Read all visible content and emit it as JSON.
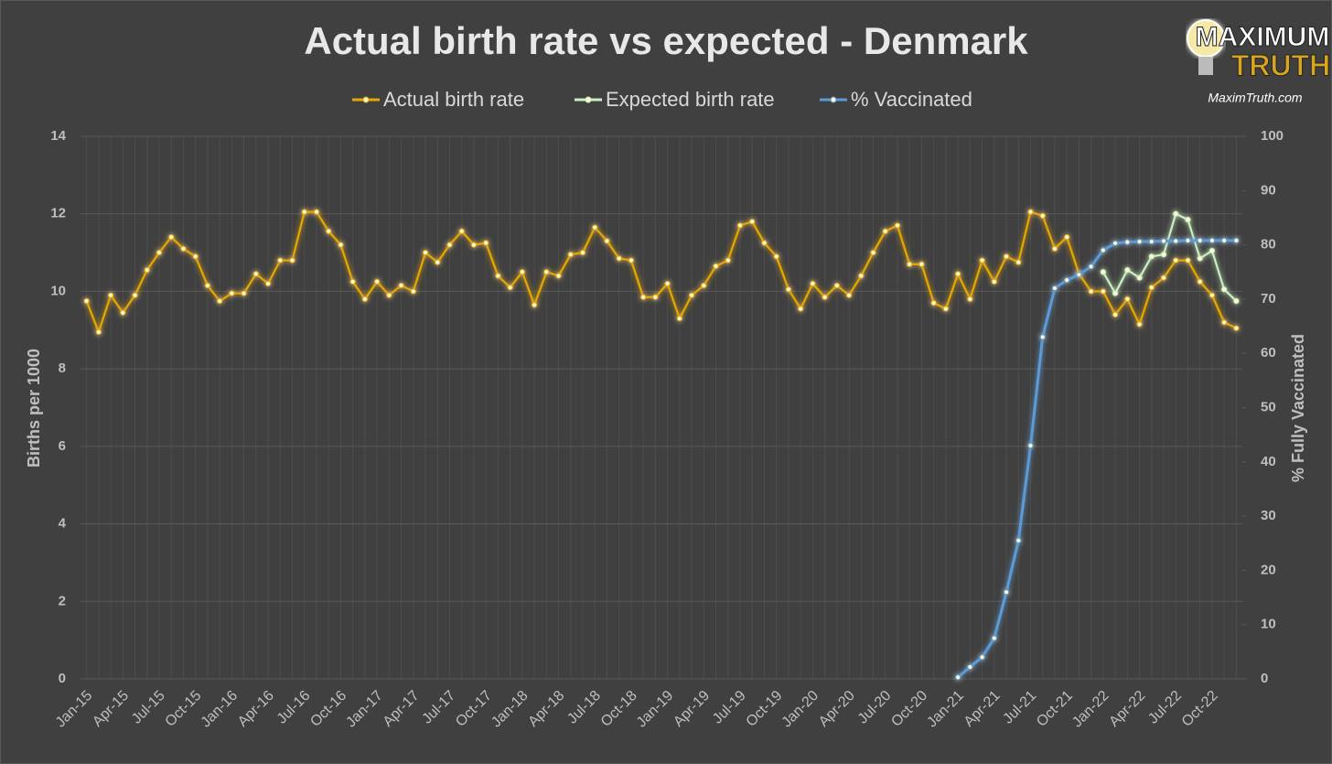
{
  "chart_data": {
    "type": "line",
    "title": "Actual birth rate vs expected - Denmark",
    "y_label": "Births per 1000",
    "y2_label": "% Fully Vaccinated",
    "categories": [
      "Jan-15",
      null,
      null,
      "Apr-15",
      null,
      null,
      "Jul-15",
      null,
      null,
      "Oct-15",
      null,
      null,
      "Jan-16",
      null,
      null,
      "Apr-16",
      null,
      null,
      "Jul-16",
      null,
      null,
      "Oct-16",
      null,
      null,
      "Jan-17",
      null,
      null,
      "Apr-17",
      null,
      null,
      "Jul-17",
      null,
      null,
      "Oct-17",
      null,
      null,
      "Jan-18",
      null,
      null,
      "Apr-18",
      null,
      null,
      "Jul-18",
      null,
      null,
      "Oct-18",
      null,
      null,
      "Jan-19",
      null,
      null,
      "Apr-19",
      null,
      null,
      "Jul-19",
      null,
      null,
      "Oct-19",
      null,
      null,
      "Jan-20",
      null,
      null,
      "Apr-20",
      null,
      null,
      "Jul-20",
      null,
      null,
      "Oct-20",
      null,
      null,
      "Jan-21",
      null,
      null,
      "Apr-21",
      null,
      null,
      "Jul-21",
      null,
      null,
      "Oct-21",
      null,
      null,
      "Jan-22",
      null,
      null,
      "Apr-22",
      null,
      null,
      "Jul-22",
      null,
      null,
      "Oct-22",
      null,
      null
    ],
    "series": [
      {
        "name": "Actual birth rate",
        "color": "#e6a800",
        "values": [
          9.75,
          8.95,
          9.9,
          9.45,
          9.9,
          10.55,
          11.0,
          11.4,
          11.1,
          10.9,
          10.15,
          9.75,
          9.95,
          9.95,
          10.45,
          10.2,
          10.8,
          10.8,
          12.05,
          12.05,
          11.55,
          11.2,
          10.25,
          9.8,
          10.25,
          9.9,
          10.15,
          10.0,
          11.0,
          10.75,
          11.2,
          11.55,
          11.2,
          11.25,
          10.4,
          10.1,
          10.5,
          9.65,
          10.5,
          10.4,
          10.95,
          11.0,
          11.65,
          11.3,
          10.85,
          10.8,
          9.85,
          9.85,
          10.2,
          9.3,
          9.9,
          10.15,
          10.65,
          10.8,
          11.7,
          11.8,
          11.25,
          10.9,
          10.05,
          9.55,
          10.2,
          9.85,
          10.15,
          9.9,
          10.4,
          11.0,
          11.55,
          11.7,
          10.7,
          10.7,
          9.7,
          9.55,
          10.45,
          9.8,
          10.8,
          10.25,
          10.9,
          10.75,
          12.05,
          11.95,
          11.1,
          11.4,
          10.45,
          10.0,
          10.0,
          9.4,
          9.8,
          9.15,
          10.1,
          10.35,
          10.8,
          10.8,
          10.25,
          9.9,
          9.2,
          9.05
        ]
      },
      {
        "name": "Expected birth rate",
        "color": "#c8f0c0",
        "values": [
          null,
          null,
          null,
          null,
          null,
          null,
          null,
          null,
          null,
          null,
          null,
          null,
          null,
          null,
          null,
          null,
          null,
          null,
          null,
          null,
          null,
          null,
          null,
          null,
          null,
          null,
          null,
          null,
          null,
          null,
          null,
          null,
          null,
          null,
          null,
          null,
          null,
          null,
          null,
          null,
          null,
          null,
          null,
          null,
          null,
          null,
          null,
          null,
          null,
          null,
          null,
          null,
          null,
          null,
          null,
          null,
          null,
          null,
          null,
          null,
          null,
          null,
          null,
          null,
          null,
          null,
          null,
          null,
          null,
          null,
          null,
          null,
          null,
          null,
          null,
          null,
          null,
          null,
          null,
          null,
          null,
          null,
          null,
          null,
          10.5,
          9.95,
          10.55,
          10.35,
          10.9,
          10.95,
          12.0,
          11.85,
          10.85,
          11.05,
          10.05,
          9.75
        ]
      },
      {
        "name": "% Vaccinated",
        "color": "#5b9bd5",
        "axis": "y2",
        "values": [
          null,
          null,
          null,
          null,
          null,
          null,
          null,
          null,
          null,
          null,
          null,
          null,
          null,
          null,
          null,
          null,
          null,
          null,
          null,
          null,
          null,
          null,
          null,
          null,
          null,
          null,
          null,
          null,
          null,
          null,
          null,
          null,
          null,
          null,
          null,
          null,
          null,
          null,
          null,
          null,
          null,
          null,
          null,
          null,
          null,
          null,
          null,
          null,
          null,
          null,
          null,
          null,
          null,
          null,
          null,
          null,
          null,
          null,
          null,
          null,
          null,
          null,
          null,
          null,
          null,
          null,
          null,
          null,
          null,
          null,
          null,
          null,
          0.3,
          2.2,
          4,
          7.5,
          16,
          25.5,
          43,
          63,
          72,
          73.5,
          74.5,
          76,
          79,
          80.3,
          80.5,
          80.6,
          80.6,
          80.7,
          80.7,
          80.8,
          80.8,
          80.8,
          80.8,
          80.8
        ]
      }
    ],
    "ylim": [
      0,
      14
    ],
    "yticks": [
      0,
      2,
      4,
      6,
      8,
      10,
      12,
      14
    ],
    "y2lim": [
      0,
      100
    ],
    "y2ticks": [
      0,
      10,
      20,
      30,
      40,
      50,
      60,
      70,
      80,
      90,
      100
    ],
    "grid": true,
    "legend": "top"
  },
  "logo": {
    "line1": "MAXIMUM",
    "line2": "TRUTH",
    "site": "MaximTruth.com"
  }
}
